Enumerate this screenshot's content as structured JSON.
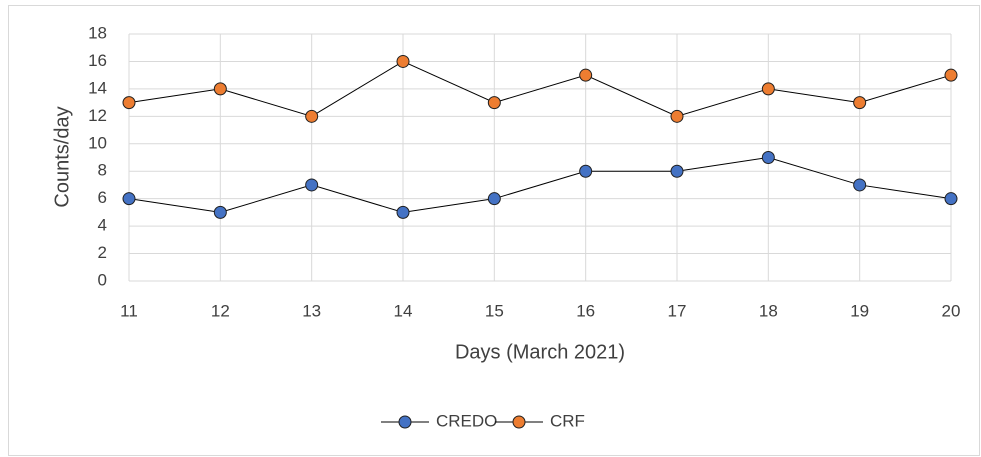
{
  "chart_data": {
    "type": "line",
    "x_label": "Days (March 2021)",
    "y_label": "Counts/day",
    "x": [
      11,
      12,
      13,
      14,
      15,
      16,
      17,
      18,
      19,
      20
    ],
    "xlim": [
      11,
      20
    ],
    "xticks": [
      11,
      12,
      13,
      14,
      15,
      16,
      17,
      18,
      19,
      20
    ],
    "ylim": [
      0,
      18
    ],
    "yticks": [
      0,
      2,
      4,
      6,
      8,
      10,
      12,
      14,
      16,
      18
    ],
    "grid": true,
    "legend": "bottom",
    "series": [
      {
        "name": "CREDO",
        "color": "#4472c4",
        "values": [
          6,
          5,
          7,
          5,
          6,
          8,
          8,
          9,
          7,
          6
        ]
      },
      {
        "name": "CRF",
        "color": "#ed7d31",
        "values": [
          13,
          14,
          12,
          16,
          13,
          15,
          12,
          14,
          13,
          15
        ]
      }
    ]
  }
}
